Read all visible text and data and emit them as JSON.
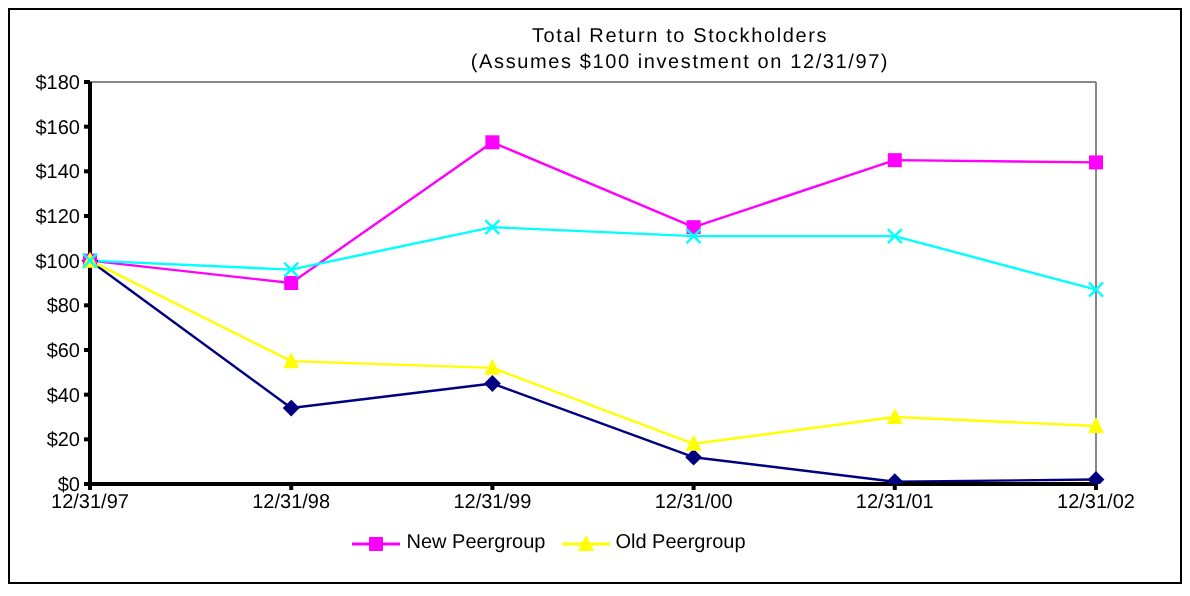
{
  "chart_data": {
    "type": "line",
    "title": "Total Return to Stockholders",
    "subtitle": "(Assumes $100 investment on 12/31/97)",
    "categories": [
      "12/31/97",
      "12/31/98",
      "12/31/99",
      "12/31/00",
      "12/31/01",
      "12/31/02"
    ],
    "series": [
      {
        "color": "#000080",
        "marker": "diamond",
        "values": [
          100,
          34,
          45,
          12,
          1,
          2
        ]
      },
      {
        "name": "New Peergroup",
        "color": "#ff00ff",
        "marker": "square",
        "values": [
          100,
          90,
          153,
          115,
          145,
          144
        ]
      },
      {
        "name": "Old Peergroup",
        "color": "#ffff00",
        "marker": "triangle",
        "values": [
          100,
          55,
          52,
          18,
          30,
          26
        ]
      },
      {
        "color": "#00ffff",
        "marker": "cross",
        "values": [
          100,
          96,
          115,
          111,
          111,
          87
        ]
      }
    ],
    "ylim": [
      0,
      180
    ],
    "yticks": [
      {
        "value": 0,
        "label": "$0"
      },
      {
        "value": 20,
        "label": "$20"
      },
      {
        "value": 40,
        "label": "$40"
      },
      {
        "value": 60,
        "label": "$60"
      },
      {
        "value": 80,
        "label": "$80"
      },
      {
        "value": 100,
        "label": "$100"
      },
      {
        "value": 120,
        "label": "$120"
      },
      {
        "value": 140,
        "label": "$140"
      },
      {
        "value": 160,
        "label": "$160"
      },
      {
        "value": 180,
        "label": "$180"
      }
    ],
    "grid": false,
    "legend": "bottom"
  }
}
